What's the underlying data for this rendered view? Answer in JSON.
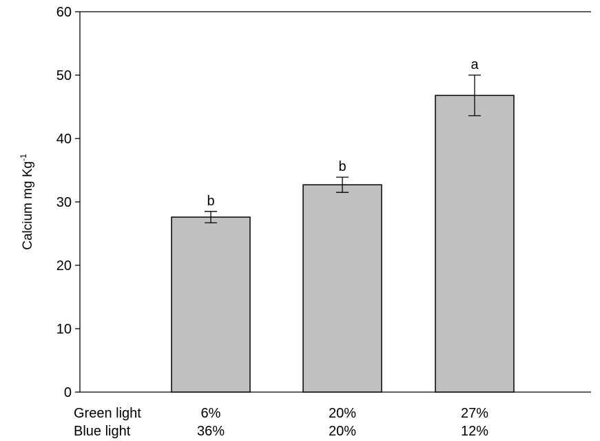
{
  "chart_data": {
    "type": "bar",
    "title": "",
    "ylabel": "Calcium mg Kg",
    "ylabel_superscript": "-1",
    "ylim": [
      0,
      60
    ],
    "yticks": [
      "0",
      "10",
      "20",
      "30",
      "40",
      "50",
      "60"
    ],
    "grid": false,
    "bar_color": "#c0c0c0",
    "row_labels": [
      "Green light",
      "Blue light"
    ],
    "categories": [
      {
        "green": "6%",
        "blue": "36%"
      },
      {
        "green": "20%",
        "blue": "20%"
      },
      {
        "green": "27%",
        "blue": "12%"
      }
    ],
    "values": [
      27.6,
      32.7,
      46.8
    ],
    "errors": [
      0.9,
      1.2,
      3.2
    ],
    "significance": [
      "b",
      "b",
      "a"
    ]
  }
}
